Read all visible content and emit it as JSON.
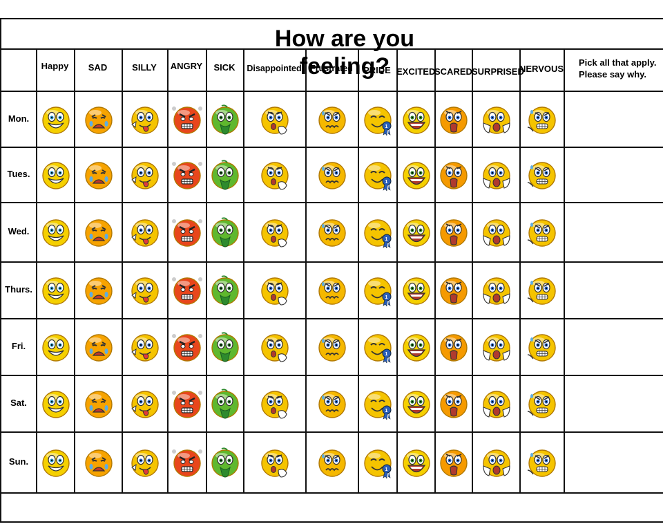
{
  "title": "How are you feeling?",
  "emotions": [
    {
      "label": "Happy",
      "icon": "happy-face-icon",
      "color": "#f5d000"
    },
    {
      "label": "SAD",
      "icon": "crying-face-icon",
      "color": "#f7a300"
    },
    {
      "label": "SILLY",
      "icon": "silly-face-icon",
      "color": "#f5c400"
    },
    {
      "label": "ANGRY",
      "icon": "angry-face-icon",
      "color": "#e8461c"
    },
    {
      "label": "SICK",
      "icon": "sick-face-icon",
      "color": "#5fb82e"
    },
    {
      "label": "Disappointed",
      "icon": "disappointed-face-icon",
      "color": "#f5c400"
    },
    {
      "label": "Frustrated",
      "icon": "frustrated-face-icon",
      "color": "#f5b800"
    },
    {
      "label": "PRIDE",
      "icon": "proud-face-with-ribbon-icon",
      "color": "#f5c400"
    },
    {
      "label": "EXCITED",
      "icon": "excited-face-icon",
      "color": "#f5d000"
    },
    {
      "label": "SCARED",
      "icon": "scared-face-icon",
      "color": "#f59a00"
    },
    {
      "label": "SURPRISED",
      "icon": "surprised-face-icon",
      "color": "#f5c400"
    },
    {
      "label": "NERVOUS",
      "icon": "nervous-face-icon",
      "color": "#f5c400"
    }
  ],
  "notes_header": {
    "line1": "Pick all that apply.",
    "line2": "Please say why."
  },
  "days": [
    "Mon.",
    "Tues.",
    "Wed.",
    "Thurs.",
    "Fri.",
    "Sat.",
    "Sun."
  ]
}
